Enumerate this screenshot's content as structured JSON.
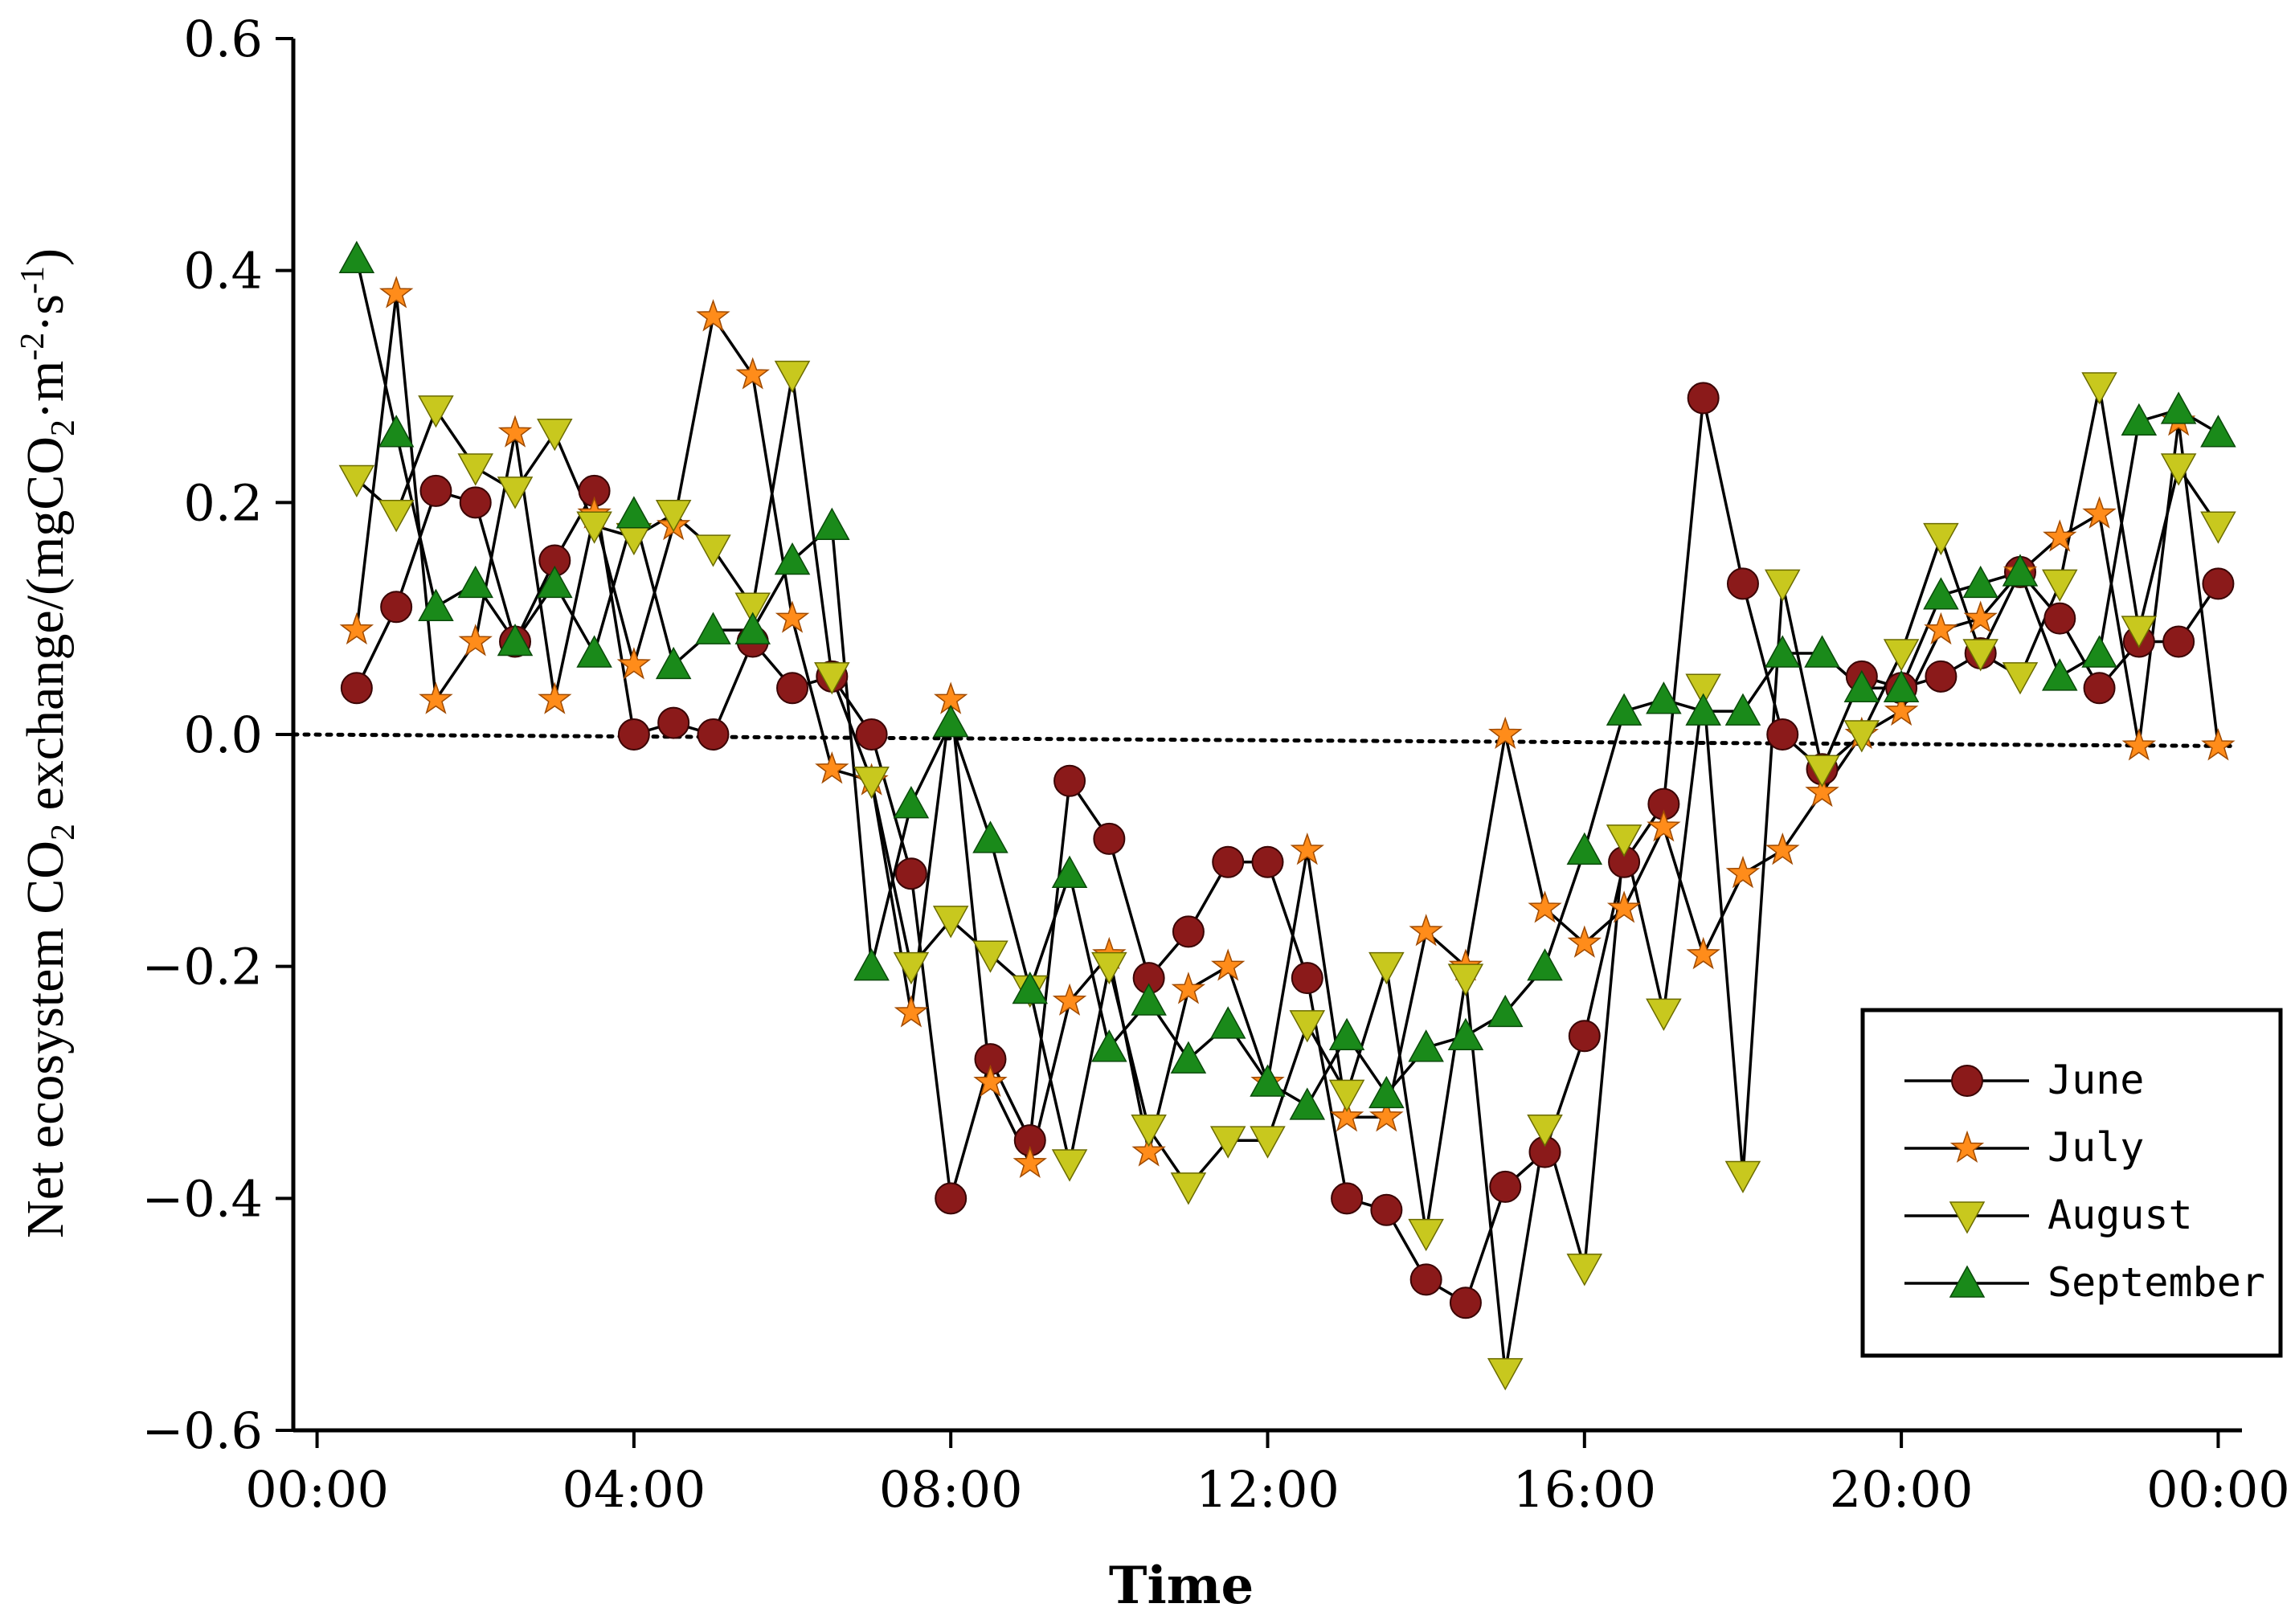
{
  "chart_data": {
    "type": "line",
    "xlabel": "Time",
    "ylabel": "Net ecosystem CO2 exchange/(mgCO2·m-2·s-1)",
    "ylabel_parts": [
      "Net ecosystem CO",
      "2",
      " exchange/(mgCO",
      "2",
      "·m",
      "-2",
      "·s",
      "-1",
      ")"
    ],
    "x_ticks": [
      "00:00",
      "04:00",
      "08:00",
      "12:00",
      "16:00",
      "20:00",
      "00:00"
    ],
    "y_ticks": [
      "0.6",
      "0.4",
      "0.2",
      "0.0",
      "−0.2",
      "−0.4",
      "−0.6"
    ],
    "y_tick_values": [
      0.6,
      0.4,
      0.2,
      0.0,
      -0.2,
      -0.4,
      -0.6
    ],
    "xlim_hours": [
      -0.3,
      24.3
    ],
    "ylim": [
      -0.6,
      0.6
    ],
    "reference_line": {
      "y_start": 0.0,
      "y_end": -0.01,
      "style": "dotted"
    },
    "legend": {
      "position": "bottom-right"
    },
    "x_hours": [
      0.5,
      1,
      1.5,
      2,
      2.5,
      3,
      3.5,
      4,
      4.5,
      5,
      5.5,
      6,
      6.5,
      7,
      7.5,
      8,
      8.5,
      9,
      9.5,
      10,
      10.5,
      11,
      11.5,
      12,
      12.5,
      13,
      13.5,
      14,
      14.5,
      15,
      15.5,
      16,
      16.5,
      17,
      17.5,
      18,
      18.5,
      19,
      19.5,
      20,
      20.5,
      21,
      21.5,
      22,
      22.5,
      23,
      23.5,
      24
    ],
    "series": [
      {
        "name": "June",
        "marker": "circle",
        "color": "#8b1a1a",
        "values": [
          0.04,
          0.11,
          0.21,
          0.2,
          0.08,
          0.15,
          0.21,
          0.0,
          0.01,
          0.0,
          0.08,
          0.04,
          0.05,
          0.0,
          -0.12,
          -0.4,
          -0.28,
          -0.35,
          -0.04,
          -0.09,
          -0.21,
          -0.17,
          -0.11,
          -0.11,
          -0.21,
          -0.4,
          -0.41,
          -0.47,
          -0.49,
          -0.39,
          -0.36,
          -0.26,
          -0.11,
          -0.06,
          0.29,
          0.13,
          0.0,
          -0.03,
          0.05,
          0.04,
          0.05,
          0.07,
          0.14,
          0.1,
          0.04,
          0.08,
          0.08,
          0.13
        ]
      },
      {
        "name": "July",
        "marker": "star",
        "color": "#ff8c1a",
        "values": [
          0.09,
          0.38,
          0.03,
          0.08,
          0.26,
          0.03,
          0.19,
          0.06,
          0.18,
          0.36,
          0.31,
          0.1,
          -0.03,
          -0.04,
          -0.24,
          0.03,
          -0.3,
          -0.37,
          -0.23,
          -0.19,
          -0.36,
          -0.22,
          -0.2,
          -0.3,
          -0.1,
          -0.33,
          -0.33,
          -0.17,
          -0.2,
          0.0,
          -0.15,
          -0.18,
          -0.15,
          -0.08,
          -0.19,
          -0.12,
          -0.1,
          -0.05,
          0.0,
          0.02,
          0.09,
          0.1,
          0.14,
          0.17,
          0.19,
          -0.01,
          0.27,
          -0.01
        ]
      },
      {
        "name": "August",
        "marker": "triangle-down",
        "color": "#c8c81e",
        "values": [
          0.22,
          0.19,
          0.28,
          0.23,
          0.21,
          0.26,
          0.18,
          0.17,
          0.19,
          0.16,
          0.11,
          0.31,
          0.05,
          -0.04,
          -0.2,
          -0.16,
          -0.19,
          -0.22,
          -0.37,
          -0.2,
          -0.34,
          -0.39,
          -0.35,
          -0.35,
          -0.25,
          -0.31,
          -0.2,
          -0.43,
          -0.21,
          -0.55,
          -0.34,
          -0.46,
          -0.09,
          -0.24,
          0.04,
          -0.38,
          0.13,
          -0.03,
          0.0,
          0.07,
          0.17,
          0.07,
          0.05,
          0.13,
          0.3,
          0.09,
          0.23,
          0.18
        ]
      },
      {
        "name": "September",
        "marker": "triangle-up",
        "color": "#1a8a1a",
        "values": [
          0.41,
          0.26,
          0.11,
          0.13,
          0.08,
          0.13,
          0.07,
          0.19,
          0.06,
          0.09,
          0.09,
          0.15,
          0.18,
          -0.2,
          -0.06,
          0.01,
          -0.09,
          -0.22,
          -0.12,
          -0.27,
          -0.23,
          -0.28,
          -0.25,
          -0.3,
          -0.32,
          -0.26,
          -0.31,
          -0.27,
          -0.26,
          -0.24,
          -0.2,
          -0.1,
          0.02,
          0.03,
          0.02,
          0.02,
          0.07,
          0.07,
          0.04,
          0.04,
          0.12,
          0.13,
          0.14,
          0.05,
          0.07,
          0.27,
          0.28,
          0.26
        ]
      }
    ]
  }
}
